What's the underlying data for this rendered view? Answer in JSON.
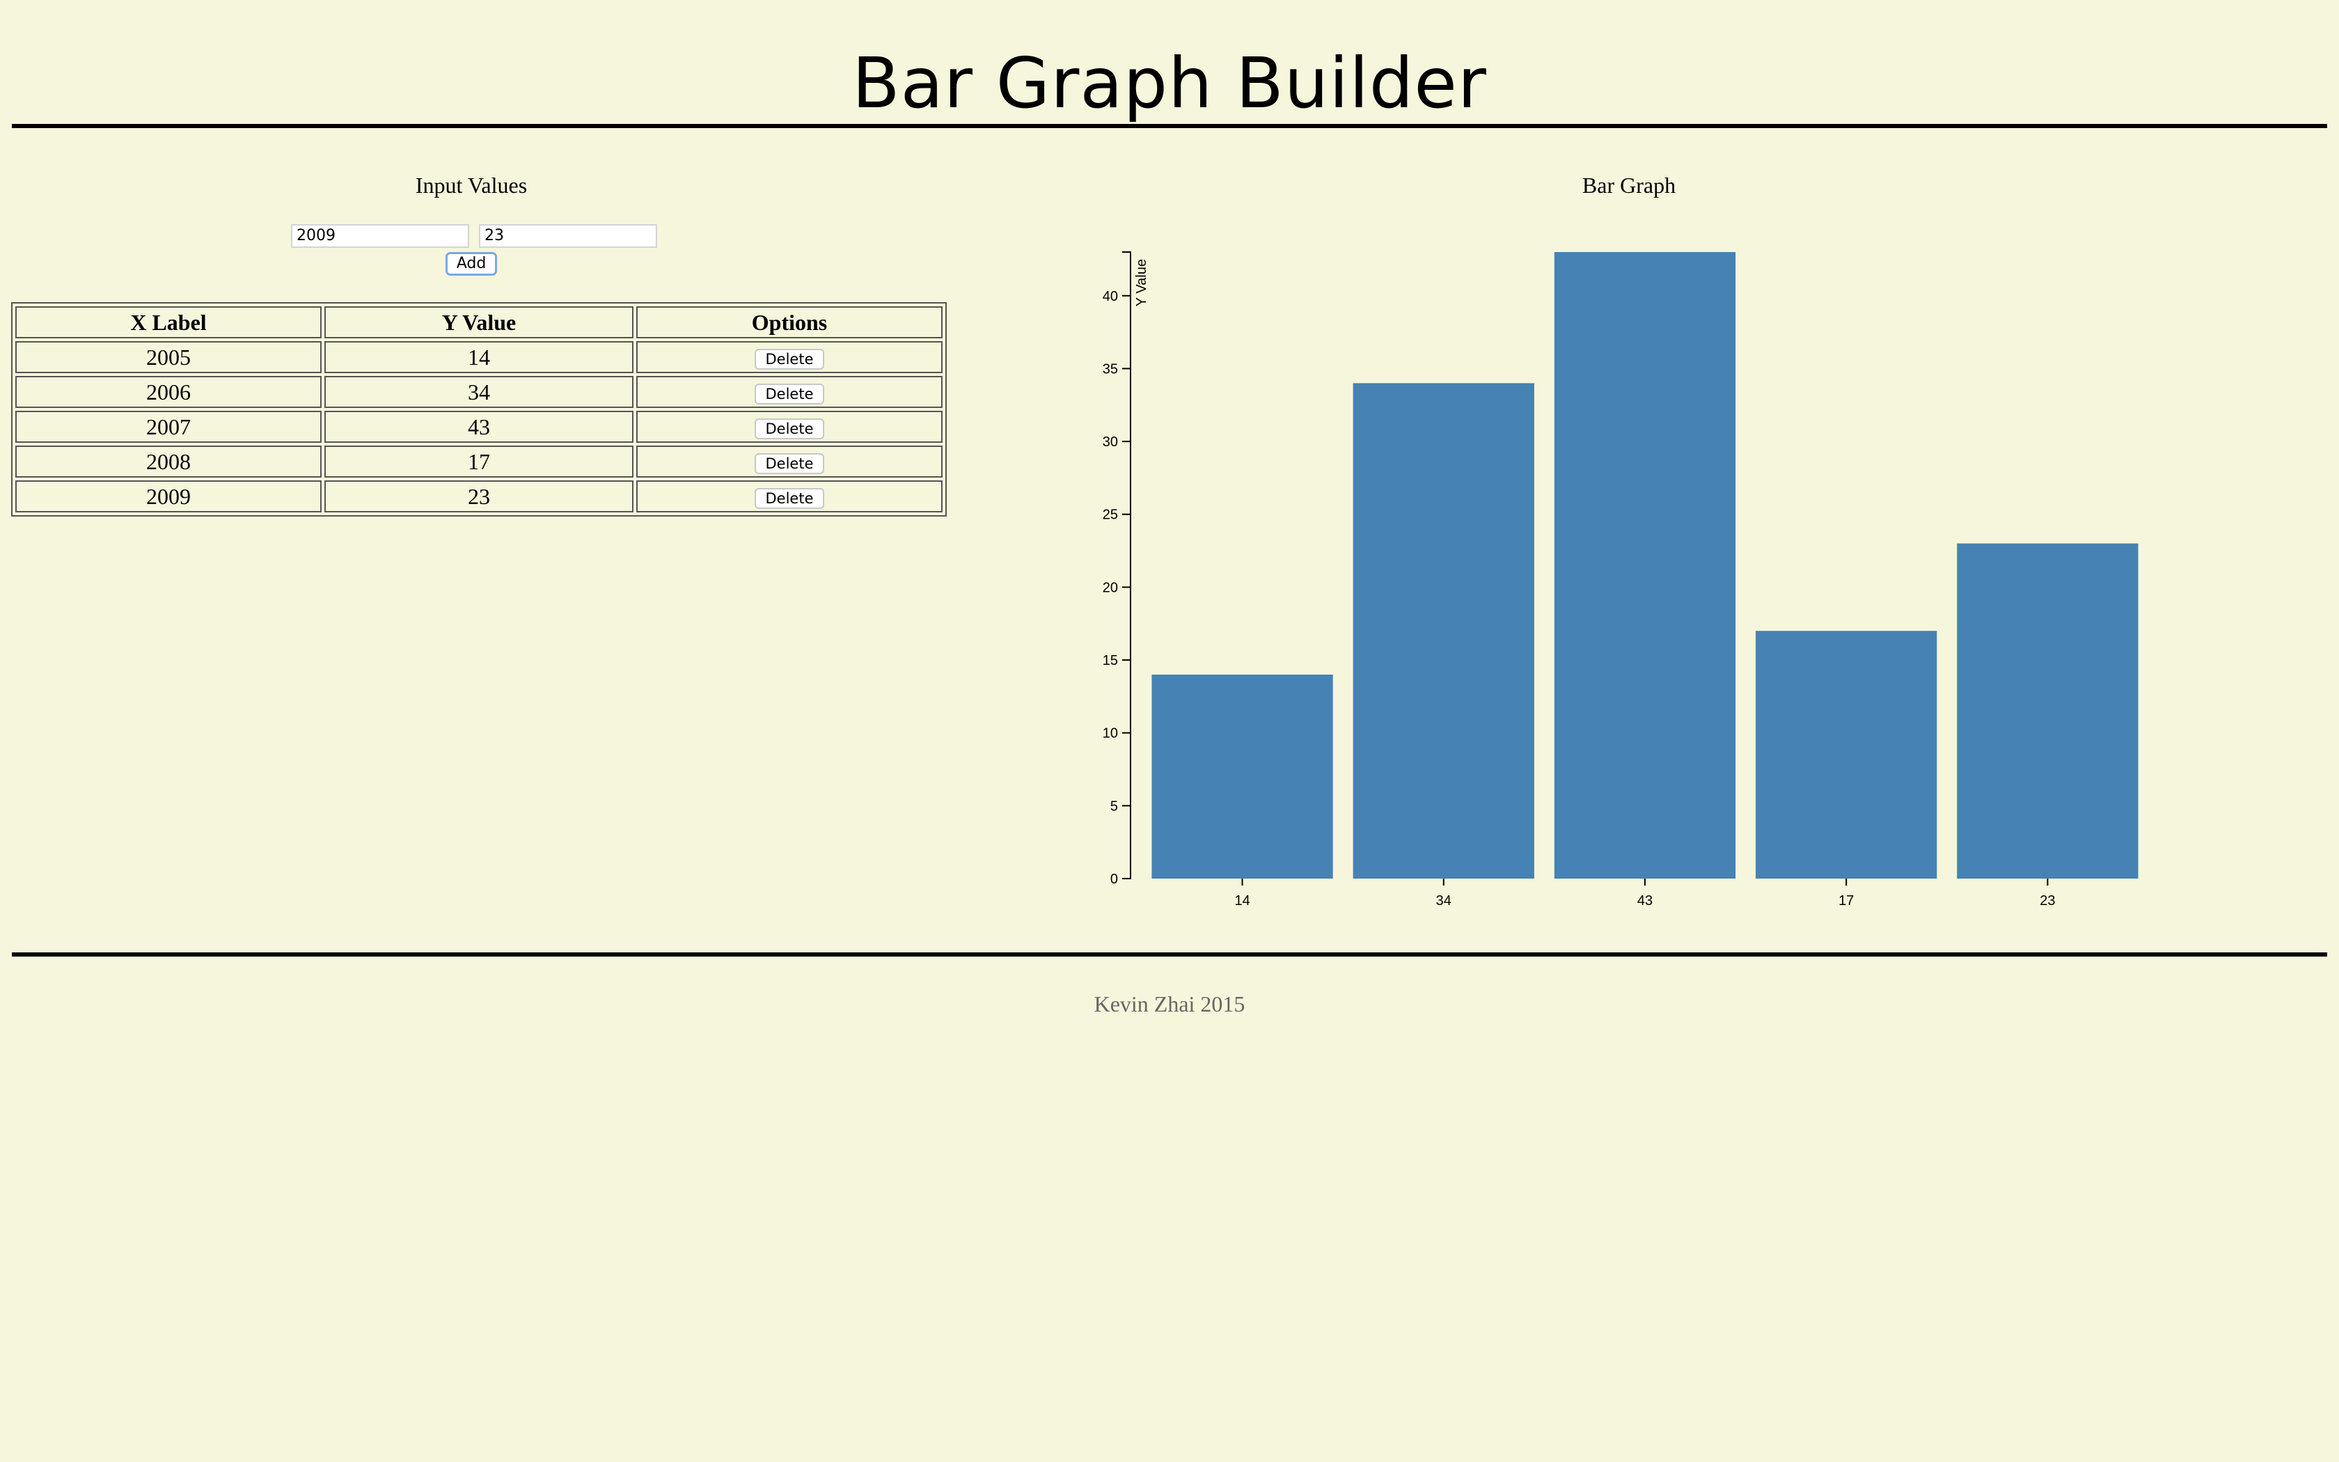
{
  "header": {
    "title": "Bar Graph Builder"
  },
  "input_panel": {
    "title": "Input Values",
    "x_input_value": "2009",
    "y_input_value": "23",
    "add_label": "Add"
  },
  "table": {
    "headers": [
      "X Label",
      "Y Value",
      "Options"
    ],
    "rows": [
      {
        "x": "2005",
        "y": "14",
        "action": "Delete"
      },
      {
        "x": "2006",
        "y": "34",
        "action": "Delete"
      },
      {
        "x": "2007",
        "y": "43",
        "action": "Delete"
      },
      {
        "x": "2008",
        "y": "17",
        "action": "Delete"
      },
      {
        "x": "2009",
        "y": "23",
        "action": "Delete"
      }
    ]
  },
  "chart_panel": {
    "title": "Bar Graph"
  },
  "chart_data": {
    "type": "bar",
    "categories": [
      "14",
      "34",
      "43",
      "17",
      "23"
    ],
    "values": [
      14,
      34,
      43,
      17,
      23
    ],
    "ylabel": "Y Value",
    "ylim": [
      0,
      43
    ],
    "yticks": [
      0,
      5,
      10,
      15,
      20,
      25,
      30,
      35,
      40
    ],
    "bar_color": "#4682b4",
    "grid": false
  },
  "footer": {
    "text": "Kevin Zhai 2015"
  },
  "colors": {
    "background": "#f6f6dc",
    "bar": "#4682b4"
  }
}
